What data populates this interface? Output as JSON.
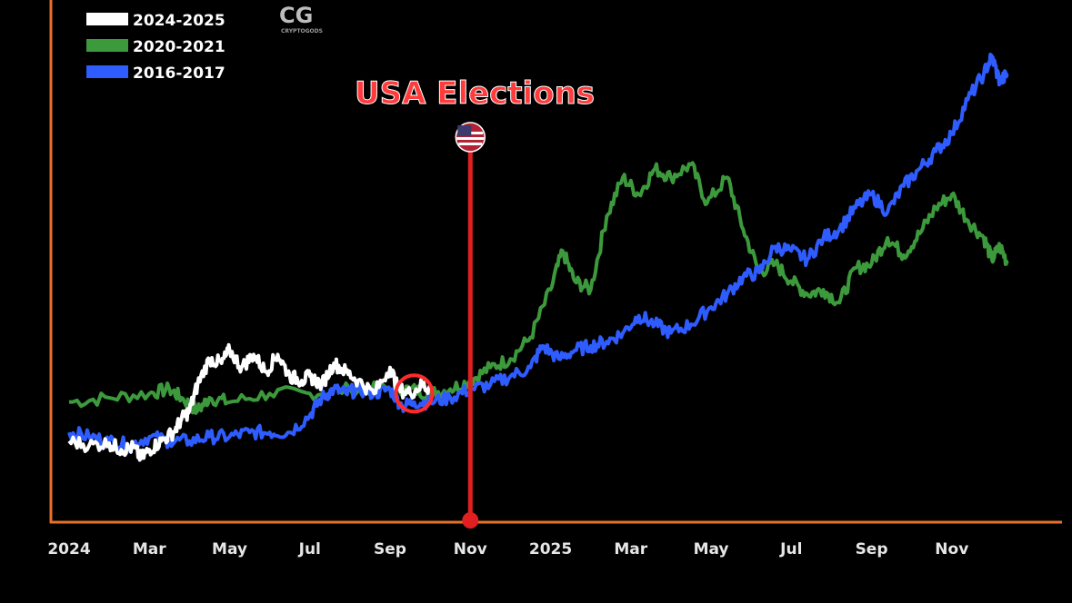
{
  "logo": {
    "mark": "CG",
    "text": "CRYPTOGODS"
  },
  "colors": {
    "background": "#000000",
    "axis": "#e8702a",
    "series_2024_2025": "#ffffff",
    "series_2020_2021": "#3c9a3c",
    "series_2016_2017": "#2f5cff",
    "event": "#e02020",
    "marker_circle": "#ff2a2a"
  },
  "chart_data": {
    "type": "line",
    "title": "",
    "xlabel": "",
    "ylabel": "",
    "x_ticks": [
      "2024",
      "Mar",
      "May",
      "Jul",
      "Sep",
      "Nov",
      "2025",
      "Mar",
      "May",
      "Jul",
      "Sep",
      "Nov"
    ],
    "x_range": [
      0,
      23.5
    ],
    "y_range": [
      0,
      100
    ],
    "y_axis_labels": "none",
    "grid": false,
    "legend_position": "top-left",
    "event": {
      "label": "USA Elections",
      "x": 10,
      "icon": "us-flag-icon"
    },
    "highlight": {
      "type": "circle",
      "x": 8.6,
      "y": 22,
      "color": "#ff2a2a"
    },
    "series": [
      {
        "name": "2024-2025",
        "color": "#ffffff",
        "points": [
          [
            0,
            11
          ],
          [
            0.5,
            10
          ],
          [
            1,
            10.5
          ],
          [
            1.3,
            9
          ],
          [
            1.6,
            9.5
          ],
          [
            1.8,
            7
          ],
          [
            2,
            9
          ],
          [
            2.3,
            11
          ],
          [
            2.6,
            13
          ],
          [
            2.8,
            16
          ],
          [
            3,
            18
          ],
          [
            3.2,
            24
          ],
          [
            3.5,
            30
          ],
          [
            3.8,
            29
          ],
          [
            4,
            32
          ],
          [
            4.3,
            28
          ],
          [
            4.6,
            31
          ],
          [
            4.9,
            27
          ],
          [
            5.2,
            31
          ],
          [
            5.5,
            26
          ],
          [
            5.8,
            25
          ],
          [
            6,
            26
          ],
          [
            6.3,
            24
          ],
          [
            6.6,
            29
          ],
          [
            6.9,
            27
          ],
          [
            7.2,
            25
          ],
          [
            7.6,
            22
          ],
          [
            8,
            28
          ],
          [
            8.2,
            23
          ],
          [
            8.5,
            22
          ],
          [
            8.8,
            24
          ],
          [
            9,
            23
          ]
        ]
      },
      {
        "name": "2020-2021",
        "color": "#3c9a3c",
        "points": [
          [
            0,
            20
          ],
          [
            1,
            21
          ],
          [
            2,
            22
          ],
          [
            2.5,
            23
          ],
          [
            2.8,
            21
          ],
          [
            3.2,
            18
          ],
          [
            3.5,
            21
          ],
          [
            4,
            20
          ],
          [
            5,
            22
          ],
          [
            6,
            22
          ],
          [
            7,
            23
          ],
          [
            8,
            23
          ],
          [
            8.5,
            23
          ],
          [
            9,
            22
          ],
          [
            9.5,
            23
          ],
          [
            10,
            25
          ],
          [
            10.5,
            28
          ],
          [
            11,
            30
          ],
          [
            11.5,
            35
          ],
          [
            12,
            46
          ],
          [
            12.3,
            55
          ],
          [
            12.6,
            48
          ],
          [
            13,
            46
          ],
          [
            13.4,
            63
          ],
          [
            13.8,
            72
          ],
          [
            14.2,
            68
          ],
          [
            14.6,
            74
          ],
          [
            15,
            72
          ],
          [
            15.5,
            75
          ],
          [
            15.9,
            66
          ],
          [
            16.4,
            72
          ],
          [
            16.8,
            60
          ],
          [
            17.2,
            50
          ],
          [
            17.6,
            52
          ],
          [
            18,
            48
          ],
          [
            18.4,
            45
          ],
          [
            18.8,
            46
          ],
          [
            19.2,
            43
          ],
          [
            19.6,
            51
          ],
          [
            20,
            52
          ],
          [
            20.4,
            58
          ],
          [
            20.8,
            54
          ],
          [
            21.2,
            59
          ],
          [
            21.6,
            65
          ],
          [
            22,
            68
          ],
          [
            22.4,
            62
          ],
          [
            22.8,
            58
          ],
          [
            23,
            53
          ],
          [
            23.2,
            56
          ],
          [
            23.4,
            52
          ]
        ]
      },
      {
        "name": "2016-2017",
        "color": "#2f5cff",
        "points": [
          [
            0,
            13
          ],
          [
            0.5,
            12
          ],
          [
            1,
            11
          ],
          [
            1.5,
            10
          ],
          [
            2,
            12
          ],
          [
            2.5,
            11
          ],
          [
            3,
            11
          ],
          [
            3.5,
            12
          ],
          [
            4,
            12
          ],
          [
            4.5,
            13
          ],
          [
            5,
            13
          ],
          [
            5.5,
            13
          ],
          [
            6,
            17
          ],
          [
            6.3,
            21
          ],
          [
            6.6,
            23
          ],
          [
            6.9,
            22
          ],
          [
            7.2,
            23
          ],
          [
            7.6,
            22
          ],
          [
            8,
            23
          ],
          [
            8.3,
            19
          ],
          [
            8.6,
            20
          ],
          [
            9,
            20
          ],
          [
            9.5,
            21
          ],
          [
            10,
            23
          ],
          [
            10.5,
            24
          ],
          [
            11,
            26
          ],
          [
            11.5,
            28
          ],
          [
            11.8,
            33
          ],
          [
            12.2,
            30
          ],
          [
            12.6,
            32
          ],
          [
            13,
            33
          ],
          [
            13.4,
            34
          ],
          [
            13.8,
            36
          ],
          [
            14.2,
            40
          ],
          [
            14.6,
            38
          ],
          [
            15,
            36
          ],
          [
            15.5,
            38
          ],
          [
            16,
            42
          ],
          [
            16.4,
            45
          ],
          [
            16.8,
            49
          ],
          [
            17.2,
            50
          ],
          [
            17.6,
            56
          ],
          [
            18,
            55
          ],
          [
            18.4,
            53
          ],
          [
            18.8,
            58
          ],
          [
            19.2,
            60
          ],
          [
            19.6,
            65
          ],
          [
            20,
            68
          ],
          [
            20.4,
            64
          ],
          [
            20.8,
            70
          ],
          [
            21.2,
            74
          ],
          [
            21.6,
            78
          ],
          [
            22,
            82
          ],
          [
            22.4,
            90
          ],
          [
            22.8,
            96
          ],
          [
            23,
            100
          ],
          [
            23.2,
            94
          ],
          [
            23.4,
            96
          ]
        ]
      }
    ]
  }
}
